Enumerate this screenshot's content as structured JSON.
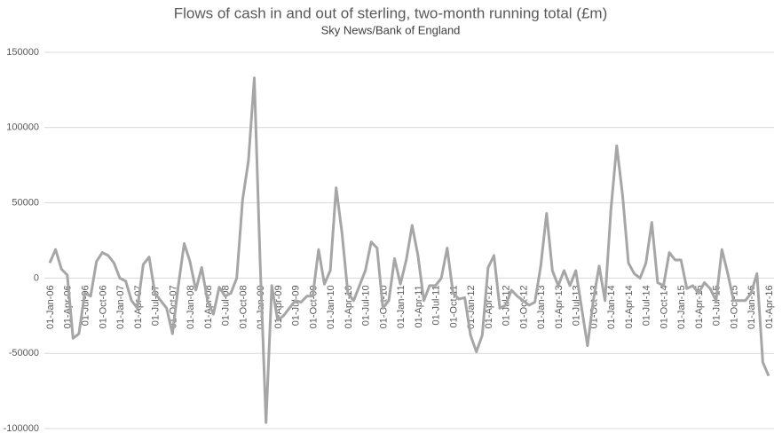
{
  "chart_data": {
    "type": "line",
    "title": "Flows of cash in and out of sterling, two-month running total (£m)",
    "subtitle": "Sky News/Bank of England",
    "categories": [
      "01-Jan-06",
      null,
      null,
      "01-Apr-06",
      null,
      null,
      "01-Jul-06",
      null,
      null,
      "01-Oct-06",
      null,
      null,
      "01-Jan-07",
      null,
      null,
      "01-Apr-07",
      null,
      null,
      "01-Jul-07",
      null,
      null,
      "01-Oct-07",
      null,
      null,
      "01-Jan-08",
      null,
      null,
      "01-Apr-08",
      null,
      null,
      "01-Jul-08",
      null,
      null,
      "01-Oct-08",
      null,
      null,
      "01-Jan-09",
      null,
      null,
      "01-Apr-09",
      null,
      null,
      "01-Jul-09",
      null,
      null,
      "01-Oct-09",
      null,
      null,
      "01-Jan-10",
      null,
      null,
      "01-Apr-10",
      null,
      null,
      "01-Jul-10",
      null,
      null,
      "01-Oct-10",
      null,
      null,
      "01-Jan-11",
      null,
      null,
      "01-Apr-11",
      null,
      null,
      "01-Jul-11",
      null,
      null,
      "01-Oct-11",
      null,
      null,
      "01-Jan-12",
      null,
      null,
      "01-Apr-12",
      null,
      null,
      "01-Jul-12",
      null,
      null,
      "01-Oct-12",
      null,
      null,
      "01-Jan-13",
      null,
      null,
      "01-Apr-13",
      null,
      null,
      "01-Jul-13",
      null,
      null,
      "01-Oct-13",
      null,
      null,
      "01-Jan-14",
      null,
      null,
      "01-Apr-14",
      null,
      null,
      "01-Jul-14",
      null,
      null,
      "01-Oct-14",
      null,
      null,
      "01-Jan-15",
      null,
      null,
      "01-Apr-15",
      null,
      null,
      "01-Jul-15",
      null,
      null,
      "01-Oct-15",
      null,
      null,
      "01-Jan-16",
      null,
      null,
      "01-Apr-16"
    ],
    "series": [
      {
        "color": "#a6a6a6",
        "values": [
          10000,
          19000,
          6000,
          2000,
          -40000,
          -37000,
          -10000,
          -12000,
          11000,
          17000,
          15000,
          10000,
          0,
          -2000,
          -15000,
          -20000,
          9000,
          14000,
          -10000,
          -15000,
          -20000,
          -37000,
          -5000,
          23000,
          11000,
          -8000,
          7000,
          -15000,
          -24000,
          -6000,
          -12000,
          -10000,
          0,
          52000,
          78000,
          133000,
          10000,
          -96000,
          -5000,
          -28000,
          -25000,
          -20000,
          -15000,
          -16000,
          -12000,
          -12000,
          19000,
          -4000,
          5000,
          60000,
          30000,
          -10000,
          -15000,
          -5000,
          5000,
          24000,
          20000,
          -20000,
          -15000,
          13000,
          -4000,
          12000,
          35000,
          15000,
          -15000,
          -5000,
          -5000,
          0,
          20000,
          -10000,
          -14000,
          -13000,
          -38000,
          -49000,
          -38000,
          7000,
          15000,
          -20000,
          -18000,
          -8000,
          -12000,
          -15000,
          -18000,
          -16000,
          8000,
          43000,
          5000,
          -5000,
          5000,
          -5000,
          5000,
          -20000,
          -45000,
          -15000,
          8000,
          -15000,
          45000,
          88000,
          55000,
          10000,
          3000,
          0,
          10000,
          37000,
          -3000,
          -5000,
          17000,
          12000,
          12000,
          -7000,
          -5000,
          -10000,
          -3000,
          -7000,
          -15000,
          19000,
          3000,
          -15000,
          -15000,
          -15000,
          -10000,
          3000,
          -56000,
          -65000
        ]
      }
    ],
    "ylim": [
      -100000,
      150000
    ],
    "yticks": [
      -100000,
      -50000,
      0,
      50000,
      100000,
      150000
    ],
    "grid": true
  }
}
